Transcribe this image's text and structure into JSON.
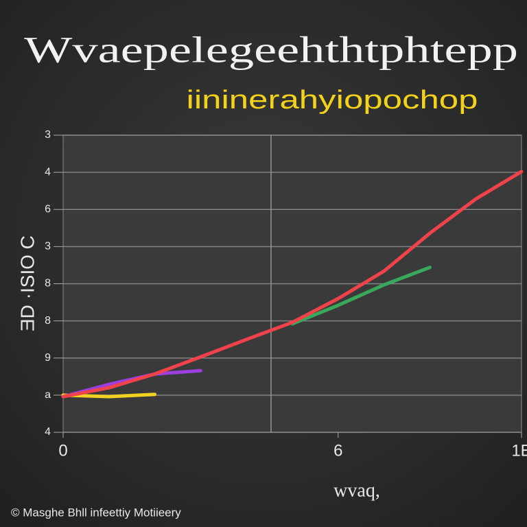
{
  "chart_data": {
    "type": "line",
    "title": "Wvaepelegeehthtphtepp",
    "subtitle": "iininerahyiopochop",
    "y_label": "ƎD ·ISIO C",
    "x_label": "wvaq,",
    "footer": "© Masghe Bhll infeettiy Motiieery",
    "x": [
      0,
      1,
      2,
      3,
      4,
      5,
      6,
      7,
      8,
      9,
      10
    ],
    "xlim": [
      0,
      10
    ],
    "xticks": [
      0,
      6,
      {
        "value": 10,
        "label": "1E"
      }
    ],
    "ylim": [
      0,
      8
    ],
    "yticks": [
      {
        "value": 0,
        "label": "4"
      },
      {
        "value": 1,
        "label": "a"
      },
      {
        "value": 2,
        "label": "9"
      },
      {
        "value": 3,
        "label": "8"
      },
      {
        "value": 4,
        "label": "8"
      },
      {
        "value": 5,
        "label": "3"
      },
      {
        "value": 6,
        "label": "6"
      },
      {
        "value": 7,
        "label": "4"
      },
      {
        "value": 8,
        "label": "3"
      }
    ],
    "grid": true,
    "series": [
      {
        "color": "#f0d020",
        "values": [
          1.0,
          0.96,
          1.02,
          null,
          null,
          null,
          null,
          null,
          null,
          null,
          null
        ]
      },
      {
        "color": "#9b3fe0",
        "values": [
          0.96,
          1.29,
          1.57,
          1.66,
          null,
          null,
          null,
          null,
          null,
          null,
          null
        ]
      },
      {
        "color": "#3aa85a",
        "values": [
          null,
          null,
          null,
          null,
          null,
          2.92,
          3.42,
          3.97,
          4.44,
          null,
          null
        ]
      },
      {
        "color": "#f0424a",
        "values": [
          0.96,
          1.2,
          1.57,
          2.03,
          2.5,
          2.96,
          3.6,
          4.34,
          5.36,
          6.28,
          7.02
        ]
      }
    ]
  }
}
